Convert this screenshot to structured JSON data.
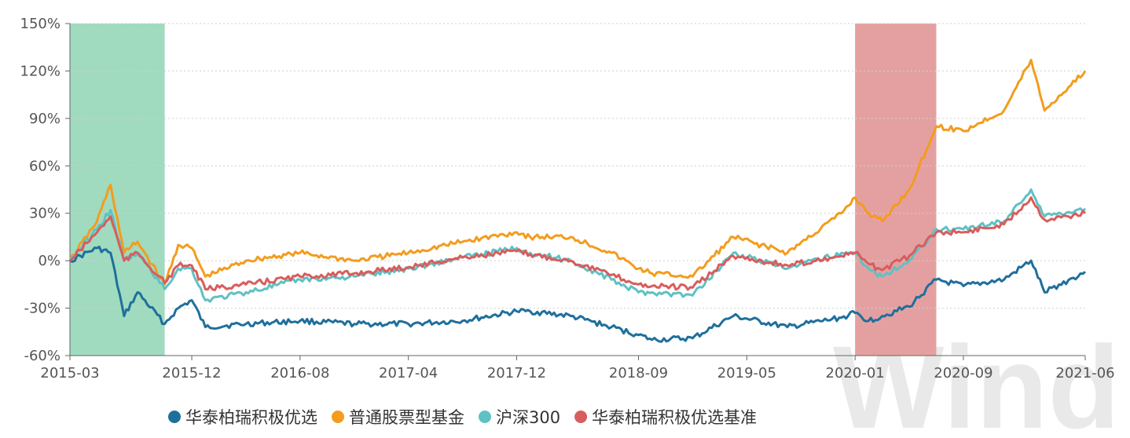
{
  "chart_data": {
    "type": "line",
    "y_unit": "%",
    "ylim": [
      -60,
      150
    ],
    "y_ticks": [
      "150%",
      "120%",
      "90%",
      "60%",
      "30%",
      "0%",
      "-30%",
      "-60%"
    ],
    "y_tick_values": [
      150,
      120,
      90,
      60,
      30,
      0,
      -30,
      -60
    ],
    "x_ticks": [
      "2015-03",
      "2015-12",
      "2016-08",
      "2017-04",
      "2017-12",
      "2018-09",
      "2019-05",
      "2020-01",
      "2020-09",
      "2021-06"
    ],
    "x": [
      "2015-03",
      "2015-05",
      "2015-06",
      "2015-07",
      "2015-08",
      "2015-10",
      "2015-11",
      "2015-12",
      "2016-01",
      "2016-04",
      "2016-08",
      "2016-12",
      "2017-04",
      "2017-08",
      "2017-12",
      "2018-01",
      "2018-04",
      "2018-07",
      "2018-09",
      "2018-10",
      "2019-01",
      "2019-04",
      "2019-08",
      "2019-12",
      "2020-01",
      "2020-02",
      "2020-03",
      "2020-05",
      "2020-07",
      "2020-09",
      "2020-12",
      "2021-02",
      "2021-03",
      "2021-06"
    ],
    "grid": true,
    "grid_style": "dotted horizontal",
    "legend_position": "bottom",
    "shaded_regions": [
      {
        "start": "2015-03",
        "end": "2015-10",
        "color": "#a0dbbf"
      },
      {
        "start": "2020-01",
        "end": "2020-07",
        "color": "#e4a0a0"
      }
    ],
    "series": [
      {
        "name": "华泰柏瑞积极优选",
        "color": "#1f6f9c",
        "values": [
          0,
          8,
          5,
          -35,
          -20,
          -40,
          -30,
          -25,
          -42,
          -40,
          -38,
          -40,
          -40,
          -38,
          -32,
          -32,
          -35,
          -42,
          -47,
          -50,
          -49,
          -35,
          -42,
          -36,
          -33,
          -38,
          -35,
          -29,
          -12,
          -16,
          -12,
          0,
          -20,
          -7
        ]
      },
      {
        "name": "普通股票型基金",
        "color": "#f39c1e",
        "values": [
          0,
          25,
          48,
          5,
          12,
          -15,
          10,
          8,
          -10,
          0,
          5,
          0,
          5,
          12,
          18,
          15,
          15,
          5,
          -5,
          -8,
          -10,
          15,
          5,
          30,
          40,
          30,
          25,
          45,
          85,
          82,
          95,
          127,
          95,
          120
        ]
      },
      {
        "name": "沪深300",
        "color": "#5fc1c4",
        "values": [
          0,
          20,
          32,
          0,
          5,
          -18,
          -5,
          -5,
          -25,
          -20,
          -12,
          -10,
          -5,
          2,
          8,
          5,
          0,
          -12,
          -20,
          -20,
          -22,
          5,
          -5,
          5,
          5,
          -5,
          -10,
          0,
          20,
          20,
          25,
          45,
          28,
          33
        ]
      },
      {
        "name": "华泰柏瑞积极优选基准",
        "color": "#d85d5d",
        "values": [
          0,
          18,
          28,
          0,
          5,
          -14,
          -3,
          -3,
          -18,
          -15,
          -10,
          -8,
          -4,
          2,
          6,
          4,
          0,
          -9,
          -15,
          -16,
          -17,
          3,
          -3,
          3,
          5,
          -2,
          -6,
          3,
          18,
          18,
          23,
          40,
          26,
          30
        ]
      }
    ]
  },
  "watermark": "Wind"
}
